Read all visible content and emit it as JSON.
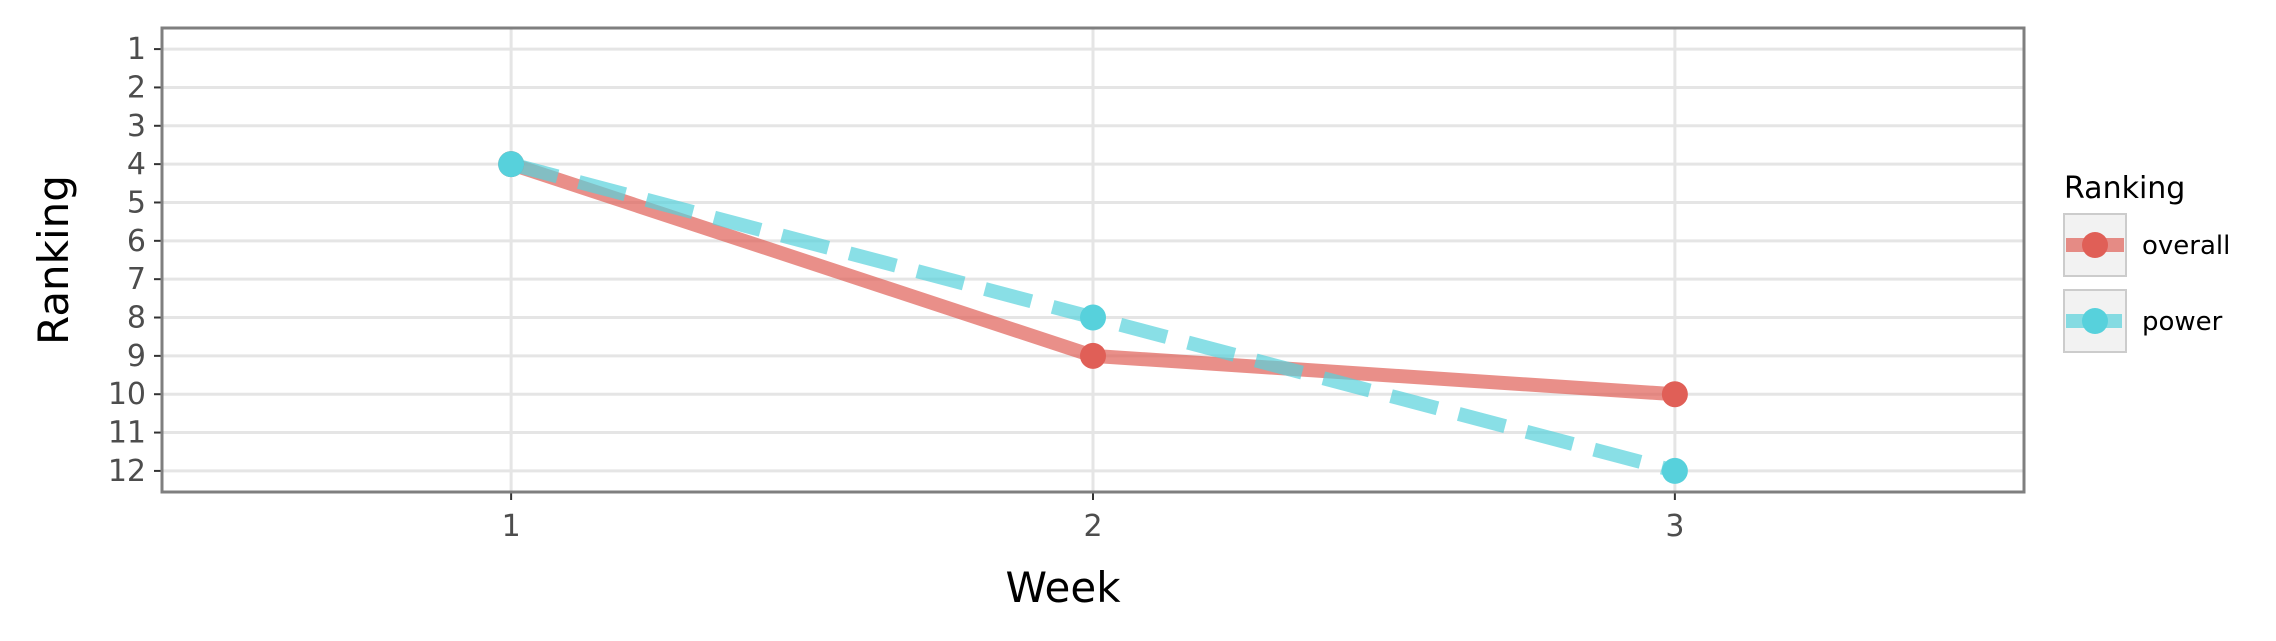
{
  "chart_data": {
    "type": "line",
    "title": "",
    "xlabel": "Week",
    "ylabel": "Ranking",
    "x": [
      1,
      2,
      3
    ],
    "x_ticks": [
      "1",
      "2",
      "3"
    ],
    "xlim": [
      0.4,
      3.6
    ],
    "y_ticks": [
      "1",
      "2",
      "3",
      "4",
      "5",
      "6",
      "7",
      "8",
      "9",
      "10",
      "11",
      "12"
    ],
    "ylim": [
      12.55,
      0.45
    ],
    "y_reversed": true,
    "grid": true,
    "legend": {
      "title": "Ranking",
      "position": "right"
    },
    "series": [
      {
        "name": "overall",
        "values": [
          4,
          9,
          10
        ],
        "color": "#e05f57",
        "line_style": "solid"
      },
      {
        "name": "power",
        "values": [
          4,
          8,
          12
        ],
        "color": "#57d1dc",
        "line_style": "dashed"
      }
    ]
  }
}
